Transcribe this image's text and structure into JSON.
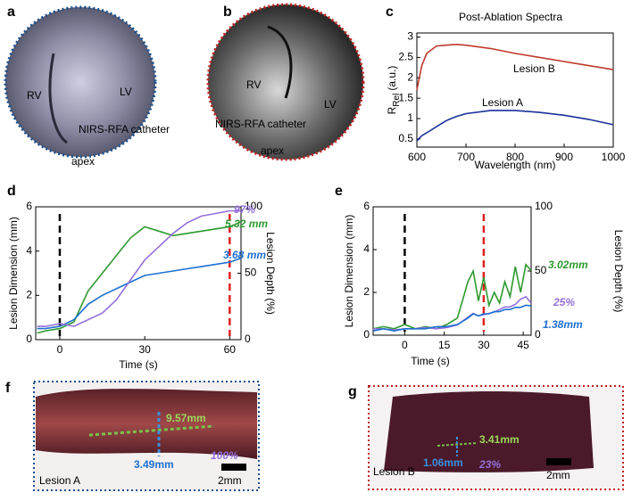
{
  "chart_data": [
    {
      "type": "line",
      "title": "Post-Ablation Spectra",
      "xlabel": "Wavelength (nm)",
      "ylabel": {
        "main": "R",
        "sub": "Rel",
        "unit": "(a.u.)"
      },
      "x": [
        600,
        610,
        620,
        640,
        660,
        680,
        700,
        750,
        800,
        850,
        900,
        950,
        1000
      ],
      "series": [
        {
          "name": "Lesion B",
          "color": "#c0392b",
          "values": [
            1.7,
            2.3,
            2.6,
            2.78,
            2.8,
            2.82,
            2.8,
            2.72,
            2.6,
            2.5,
            2.4,
            2.3,
            2.2
          ]
        },
        {
          "name": "Lesion A",
          "color": "#1a2f9a",
          "values": [
            0.45,
            0.58,
            0.65,
            0.8,
            0.95,
            1.05,
            1.12,
            1.2,
            1.2,
            1.15,
            1.08,
            0.98,
            0.85
          ]
        }
      ],
      "xlim": [
        600,
        1000
      ],
      "xticks": [
        600,
        700,
        800,
        900,
        1000
      ],
      "ylim": [
        0.3,
        3.1
      ],
      "yticks": [
        0.5,
        1,
        1.5,
        2,
        2.5,
        3
      ]
    },
    {
      "type": "line",
      "xlabel": "Time (s)",
      "ylabel": "Lesion Dimension (mm)",
      "y2label": "Lesion Depth (%)",
      "x": [
        -8,
        -5,
        0,
        5,
        10,
        15,
        20,
        25,
        30,
        35,
        40,
        45,
        50,
        55,
        60,
        64
      ],
      "series": [
        {
          "color": "#2e9a2e",
          "values": [
            0.3,
            0.4,
            0.5,
            0.8,
            2.2,
            3,
            3.8,
            4.6,
            5.1,
            4.9,
            4.7,
            4.8,
            4.9,
            5.0,
            5.1,
            5.32
          ],
          "end_label": "5.32 mm"
        },
        {
          "color": "#1f6fd0",
          "values": [
            0.5,
            0.5,
            0.6,
            0.9,
            1.6,
            2,
            2.3,
            2.6,
            2.9,
            3.0,
            3.1,
            3.2,
            3.3,
            3.4,
            3.5,
            3.68
          ],
          "end_label": "3.68 mm"
        },
        {
          "color": "#9370db",
          "axis": "y2",
          "values": [
            10,
            10,
            12,
            10,
            15,
            20,
            30,
            45,
            60,
            70,
            80,
            88,
            93,
            95,
            97,
            97
          ],
          "end_label": "97%"
        }
      ],
      "vlines": [
        {
          "x": 0,
          "color": "#000000"
        },
        {
          "x": 60,
          "color": "#e02020"
        }
      ],
      "xlim": [
        -8.5,
        64
      ],
      "xticks": [
        0,
        30,
        60
      ],
      "ylim": [
        0,
        6
      ],
      "yticks": [
        0,
        2,
        4,
        6
      ],
      "y2lim": [
        0,
        100
      ],
      "y2ticks": [
        0,
        50,
        100
      ]
    },
    {
      "type": "line",
      "xlabel": "Time (s)",
      "ylabel": "Lesion Dimension (mm)",
      "y2label": "Lesion Depth (%)",
      "x": [
        -12,
        -8,
        -4,
        0,
        4,
        8,
        12,
        16,
        20,
        24,
        26,
        28,
        30,
        32,
        34,
        36,
        38,
        40,
        42,
        44,
        46,
        48
      ],
      "series": [
        {
          "color": "#2e9a2e",
          "values": [
            0.3,
            0.4,
            0.3,
            0.5,
            0.3,
            0.4,
            0.3,
            0.5,
            0.8,
            2.5,
            3.0,
            1.6,
            2.7,
            1.4,
            2.0,
            1.5,
            2.5,
            1.8,
            3.2,
            2.0,
            3.3,
            3.02
          ],
          "end_label": "3.02mm"
        },
        {
          "color": "#9370db",
          "axis": "y2",
          "values": [
            5,
            5,
            4,
            5,
            5,
            6,
            5,
            6,
            8,
            14,
            17,
            15,
            16,
            17,
            18,
            20,
            22,
            22,
            24,
            28,
            30,
            25
          ],
          "end_label": "25%"
        },
        {
          "color": "#1f6fd0",
          "values": [
            0.2,
            0.3,
            0.2,
            0.3,
            0.3,
            0.3,
            0.4,
            0.4,
            0.5,
            0.8,
            1.0,
            0.9,
            1.0,
            1.0,
            1.1,
            1.1,
            1.2,
            1.2,
            1.3,
            1.3,
            1.4,
            1.38
          ],
          "end_label": "1.38mm"
        }
      ],
      "vlines": [
        {
          "x": 0,
          "color": "#000000"
        },
        {
          "x": 30,
          "color": "#e02020"
        }
      ],
      "xlim": [
        -12,
        48
      ],
      "xticks": [
        0,
        15,
        30,
        45
      ],
      "ylim": [
        0,
        6
      ],
      "yticks": [
        0,
        2,
        4,
        6
      ],
      "y2lim": [
        0,
        100
      ],
      "y2ticks": [
        0,
        50,
        100
      ]
    }
  ],
  "panels": {
    "letters": [
      "a",
      "b",
      "c",
      "d",
      "e",
      "f",
      "g"
    ],
    "a": {
      "rv": "RV",
      "lv": "LV",
      "catheter": "NIRS-RFA catheter",
      "apex": "apex"
    },
    "b": {
      "rv": "RV",
      "lv": "LV",
      "catheter": "NIRS-RFA catheter",
      "apex": "apex"
    },
    "f": {
      "length": "9.57mm",
      "width": "3.49mm",
      "depth": "100%",
      "lesion": "Lesion A",
      "scale": "2mm"
    },
    "g": {
      "length": "3.41mm",
      "width": "1.06mm",
      "depth": "23%",
      "lesion": "Lesion B",
      "scale": "2mm"
    }
  }
}
